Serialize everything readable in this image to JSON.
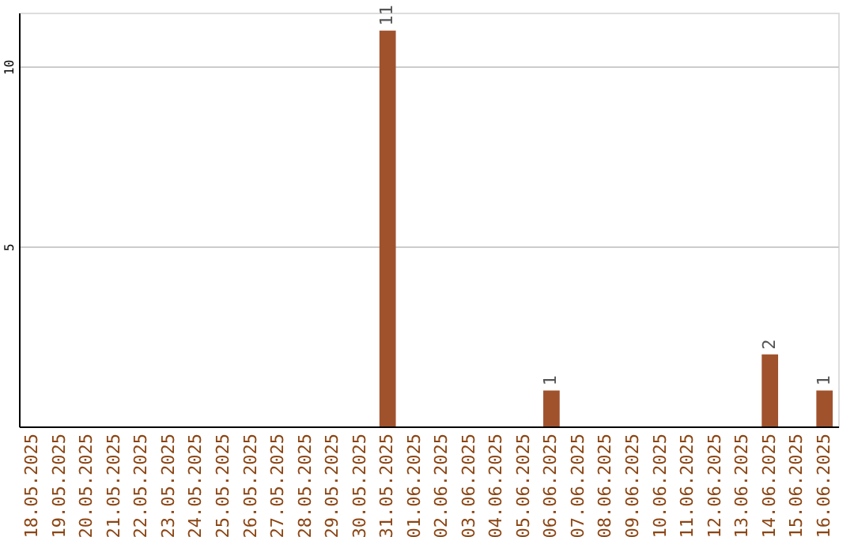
{
  "chart_data": {
    "type": "bar",
    "categories": [
      "18.05.2025",
      "19.05.2025",
      "20.05.2025",
      "21.05.2025",
      "22.05.2025",
      "23.05.2025",
      "24.05.2025",
      "25.05.2025",
      "26.05.2025",
      "27.05.2025",
      "28.05.2025",
      "29.05.2025",
      "30.05.2025",
      "31.05.2025",
      "01.06.2025",
      "02.06.2025",
      "03.06.2025",
      "04.06.2025",
      "05.06.2025",
      "06.06.2025",
      "07.06.2025",
      "08.06.2025",
      "09.06.2025",
      "10.06.2025",
      "11.06.2025",
      "12.06.2025",
      "13.06.2025",
      "14.06.2025",
      "15.06.2025",
      "16.06.2025"
    ],
    "values": [
      0,
      0,
      0,
      0,
      0,
      0,
      0,
      0,
      0,
      0,
      0,
      0,
      0,
      11,
      0,
      0,
      0,
      0,
      0,
      1,
      0,
      0,
      0,
      0,
      0,
      0,
      0,
      2,
      0,
      1
    ],
    "value_labels": [
      null,
      null,
      null,
      null,
      null,
      null,
      null,
      null,
      null,
      null,
      null,
      null,
      null,
      "11",
      null,
      null,
      null,
      null,
      null,
      "1",
      null,
      null,
      null,
      null,
      null,
      null,
      null,
      "2",
      null,
      "1"
    ],
    "color": "#a0522d",
    "ylim": [
      0,
      11.5
    ],
    "yticks": [
      5,
      10
    ],
    "grid": "y"
  }
}
